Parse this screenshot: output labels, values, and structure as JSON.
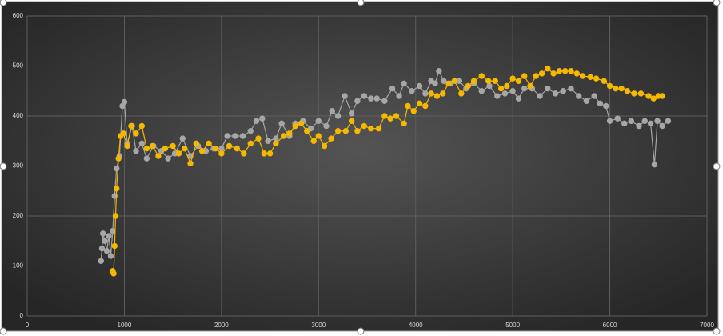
{
  "chart_data": {
    "type": "scatter-line",
    "xlim": [
      0,
      7000
    ],
    "xticks": [
      0,
      1000,
      2000,
      3000,
      4000,
      5000,
      6000,
      7000
    ],
    "ylim": [
      0,
      600
    ],
    "yticks": [
      0,
      100,
      200,
      300,
      400,
      500,
      600
    ],
    "grid": true,
    "series": [
      {
        "color": "#a6a6a6",
        "x": [
          760,
          770,
          780,
          800,
          820,
          840,
          860,
          880,
          900,
          920,
          950,
          980,
          1000,
          1030,
          1080,
          1120,
          1180,
          1230,
          1300,
          1380,
          1450,
          1520,
          1600,
          1680,
          1760,
          1840,
          1920,
          2000,
          2060,
          2140,
          2220,
          2300,
          2360,
          2420,
          2480,
          2560,
          2620,
          2700,
          2760,
          2840,
          2920,
          3000,
          3080,
          3140,
          3200,
          3270,
          3340,
          3400,
          3470,
          3540,
          3600,
          3680,
          3760,
          3830,
          3880,
          3960,
          4040,
          4100,
          4160,
          4200,
          4240,
          4290,
          4360,
          4450,
          4520,
          4600,
          4680,
          4760,
          4840,
          4920,
          5000,
          5060,
          5120,
          5200,
          5280,
          5360,
          5440,
          5520,
          5600,
          5680,
          5760,
          5840,
          5900,
          5960,
          6000,
          6080,
          6150,
          6220,
          6300,
          6360,
          6420,
          6460,
          6490,
          6540,
          6600
        ],
        "values": [
          110,
          135,
          165,
          150,
          130,
          160,
          120,
          170,
          240,
          295,
          320,
          420,
          428,
          345,
          380,
          330,
          345,
          315,
          340,
          330,
          315,
          325,
          355,
          320,
          340,
          330,
          335,
          335,
          360,
          360,
          360,
          370,
          390,
          395,
          350,
          355,
          385,
          360,
          385,
          390,
          375,
          390,
          380,
          410,
          400,
          440,
          405,
          430,
          440,
          435,
          435,
          430,
          455,
          440,
          465,
          450,
          460,
          445,
          470,
          465,
          490,
          470,
          465,
          470,
          455,
          465,
          450,
          460,
          440,
          445,
          450,
          435,
          455,
          455,
          440,
          455,
          445,
          450,
          455,
          440,
          430,
          440,
          425,
          420,
          390,
          395,
          385,
          390,
          380,
          390,
          385,
          303,
          390,
          380,
          390
        ]
      },
      {
        "color": "#f5b800",
        "x": [
          880,
          890,
          900,
          910,
          920,
          940,
          960,
          990,
          1030,
          1070,
          1120,
          1180,
          1230,
          1290,
          1350,
          1420,
          1500,
          1560,
          1620,
          1680,
          1740,
          1800,
          1870,
          1940,
          2000,
          2080,
          2160,
          2230,
          2300,
          2380,
          2440,
          2500,
          2560,
          2640,
          2700,
          2760,
          2820,
          2880,
          2950,
          3000,
          3060,
          3130,
          3200,
          3280,
          3340,
          3400,
          3470,
          3540,
          3620,
          3680,
          3740,
          3800,
          3880,
          3920,
          3980,
          4040,
          4100,
          4160,
          4220,
          4280,
          4340,
          4400,
          4470,
          4540,
          4600,
          4680,
          4750,
          4820,
          4880,
          4940,
          5000,
          5060,
          5120,
          5180,
          5240,
          5300,
          5360,
          5420,
          5480,
          5540,
          5600,
          5660,
          5720,
          5800,
          5860,
          5940,
          6000,
          6060,
          6120,
          6180,
          6250,
          6320,
          6400,
          6450,
          6500,
          6540
        ],
        "values": [
          90,
          85,
          140,
          200,
          255,
          315,
          360,
          365,
          340,
          380,
          365,
          380,
          335,
          340,
          320,
          335,
          340,
          325,
          335,
          305,
          345,
          330,
          345,
          335,
          325,
          340,
          335,
          325,
          345,
          355,
          325,
          325,
          345,
          360,
          365,
          380,
          385,
          370,
          350,
          360,
          340,
          355,
          370,
          370,
          390,
          370,
          380,
          375,
          375,
          400,
          395,
          400,
          385,
          420,
          410,
          425,
          420,
          445,
          440,
          445,
          465,
          470,
          445,
          460,
          470,
          480,
          470,
          470,
          455,
          460,
          475,
          470,
          480,
          460,
          480,
          485,
          495,
          485,
          490,
          490,
          490,
          485,
          480,
          478,
          475,
          470,
          460,
          455,
          455,
          450,
          445,
          445,
          440,
          435,
          440,
          440
        ]
      }
    ]
  }
}
